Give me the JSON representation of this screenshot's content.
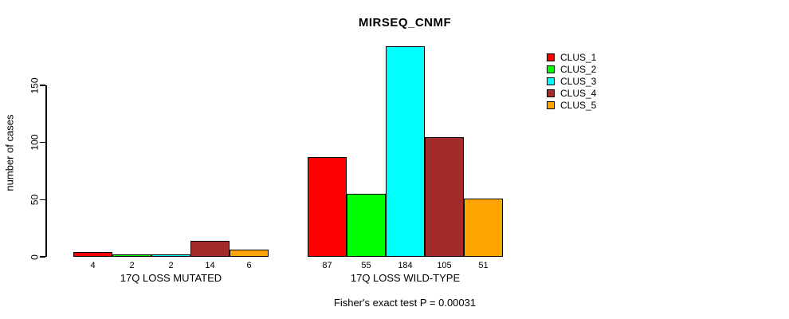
{
  "chart_data": {
    "type": "bar",
    "title": "MIRSEQ_CNMF",
    "ylabel": "number of cases",
    "yticks": [
      0,
      50,
      100,
      150
    ],
    "ylim": [
      0,
      184
    ],
    "grid": false,
    "legend_position": "top-right",
    "categories": [
      "17Q LOSS MUTATED",
      "17Q LOSS WILD-TYPE"
    ],
    "series": [
      {
        "name": "CLUS_1",
        "color": "#FF0000",
        "values": [
          4,
          87
        ]
      },
      {
        "name": "CLUS_2",
        "color": "#00FF00",
        "values": [
          2,
          55
        ]
      },
      {
        "name": "CLUS_3",
        "color": "#00FFFF",
        "values": [
          2,
          184
        ]
      },
      {
        "name": "CLUS_4",
        "color": "#A52A2A",
        "values": [
          14,
          105
        ]
      },
      {
        "name": "CLUS_5",
        "color": "#FFA500",
        "values": [
          6,
          51
        ]
      }
    ],
    "annotation": "Fisher's exact test P = 0.00031"
  }
}
